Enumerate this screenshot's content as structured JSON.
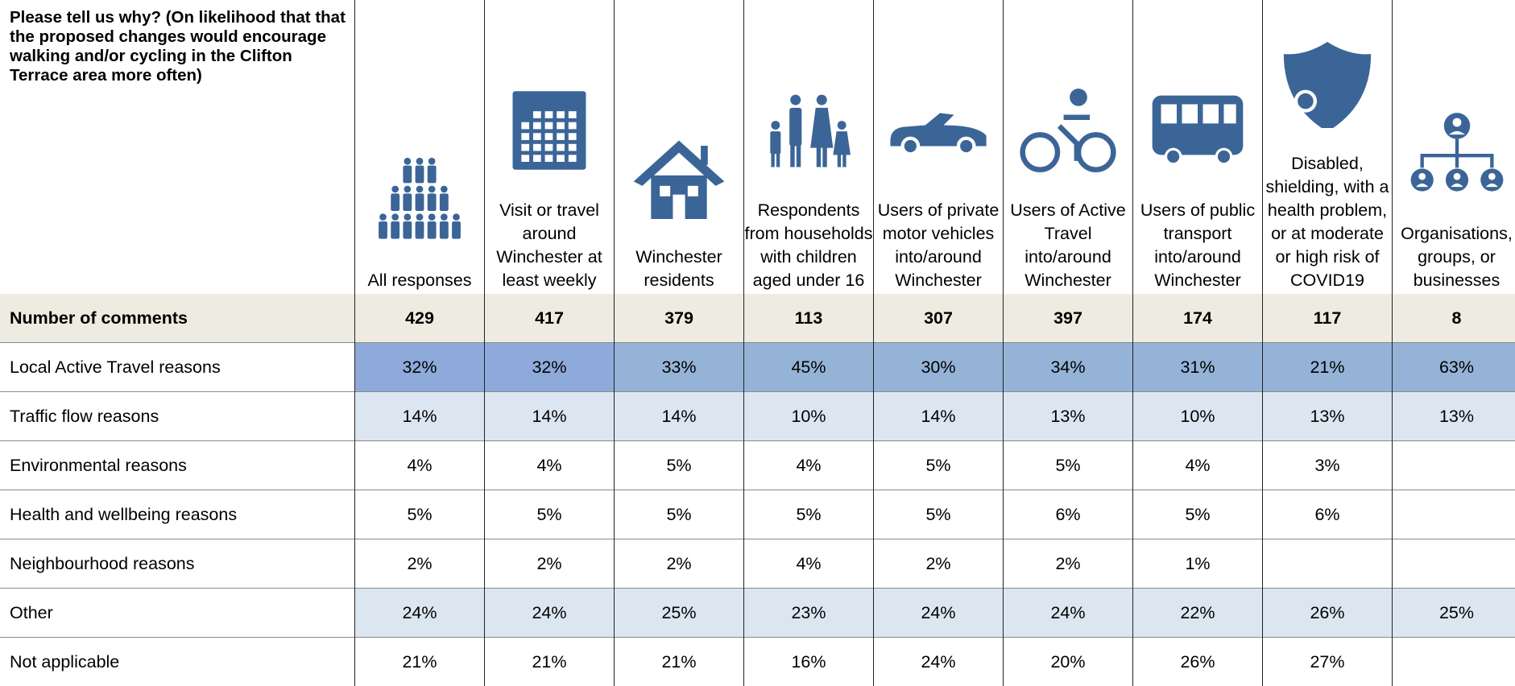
{
  "header": {
    "title": "Please tell us why? (On likelihood that that the proposed changes would encourage walking and/or cycling in the Clifton Terrace area more often)",
    "columns": [
      "All responses",
      "Visit or travel around Winchester at least weekly",
      "Winchester residents",
      "Respondents from households with children aged under 16",
      "Users of private motor vehicles into/around Winchester",
      "Users of Active Travel into/around Winchester",
      "Users of public transport into/around Winchester",
      "Disabled, shielding, with a health problem, or at moderate or high risk of COVID19",
      "Organisations, groups, or businesses"
    ]
  },
  "table": {
    "rows": [
      {
        "label": "Number of comments",
        "cells": [
          "429",
          "417",
          "379",
          "113",
          "307",
          "397",
          "174",
          "117",
          "8"
        ]
      },
      {
        "label": "Local Active Travel reasons",
        "cells": [
          "32%",
          "32%",
          "33%",
          "45%",
          "30%",
          "34%",
          "31%",
          "21%",
          "63%"
        ]
      },
      {
        "label": "Traffic flow reasons",
        "cells": [
          "14%",
          "14%",
          "14%",
          "10%",
          "14%",
          "13%",
          "10%",
          "13%",
          "13%"
        ]
      },
      {
        "label": "Environmental reasons",
        "cells": [
          "4%",
          "4%",
          "5%",
          "4%",
          "5%",
          "5%",
          "4%",
          "3%",
          null
        ]
      },
      {
        "label": "Health and wellbeing reasons",
        "cells": [
          "5%",
          "5%",
          "5%",
          "5%",
          "5%",
          "6%",
          "5%",
          "6%",
          null
        ]
      },
      {
        "label": "Neighbourhood reasons",
        "cells": [
          "2%",
          "2%",
          "2%",
          "4%",
          "2%",
          "2%",
          "1%",
          null,
          null
        ]
      },
      {
        "label": "Other",
        "cells": [
          "24%",
          "24%",
          "25%",
          "23%",
          "24%",
          "24%",
          "22%",
          "26%",
          "25%"
        ]
      },
      {
        "label": "Not applicable",
        "cells": [
          "21%",
          "21%",
          "21%",
          "16%",
          "24%",
          "20%",
          "26%",
          "27%",
          null
        ]
      }
    ]
  }
}
